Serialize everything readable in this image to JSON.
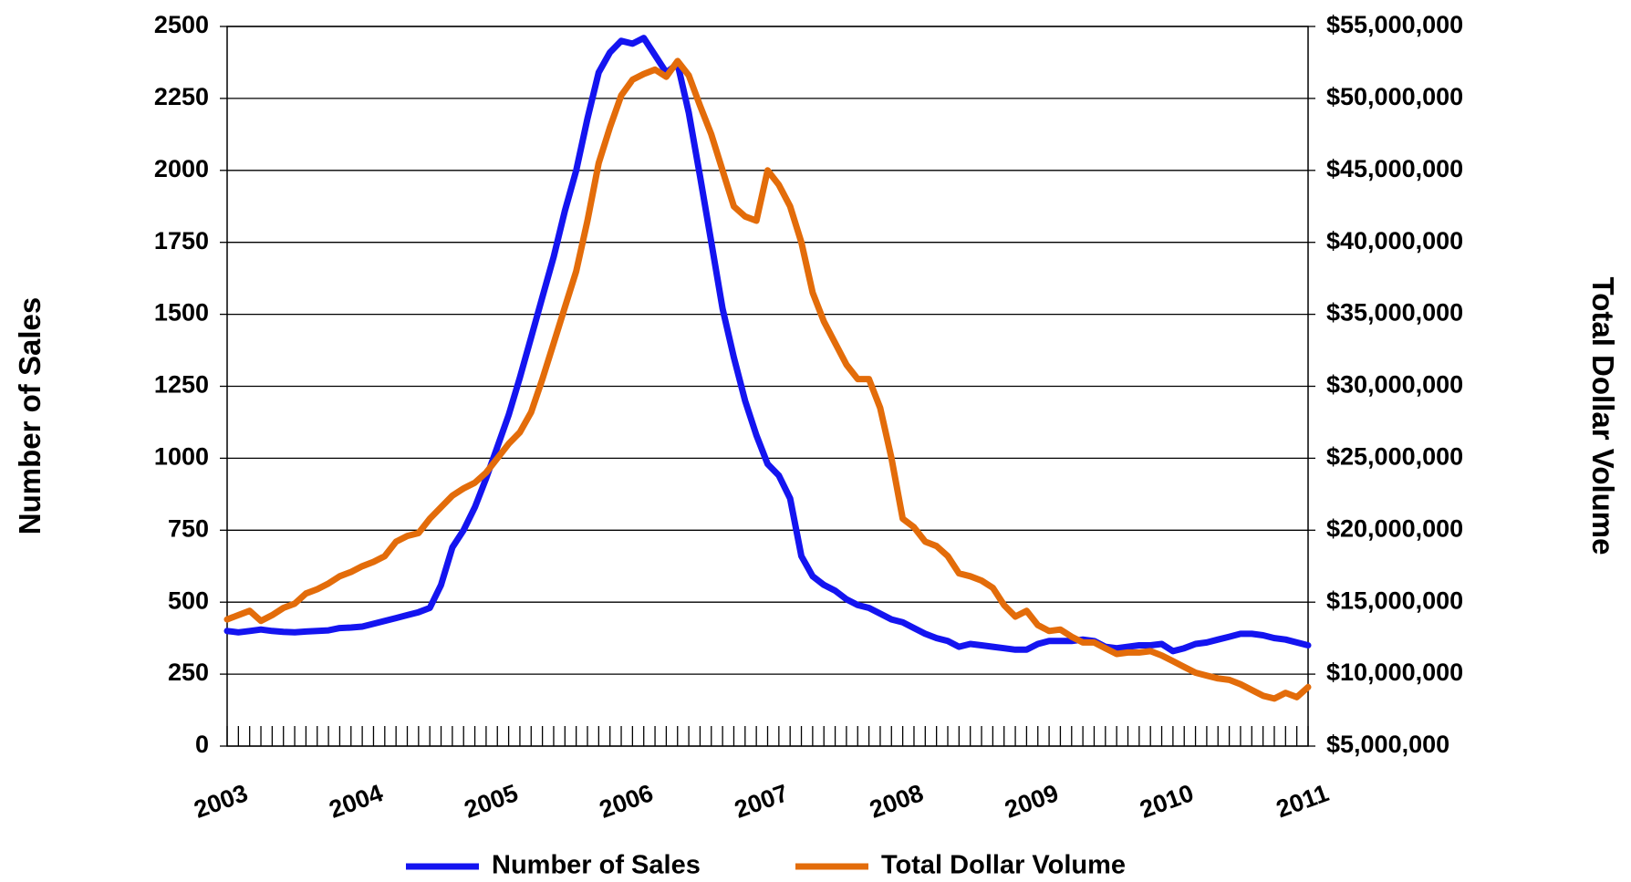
{
  "chart_data": {
    "type": "line",
    "y_label": "Number of Sales",
    "y2_label": "Total Dollar Volume",
    "categories": [
      "2003",
      null,
      null,
      null,
      null,
      null,
      null,
      null,
      null,
      null,
      null,
      null,
      "2004",
      null,
      null,
      null,
      null,
      null,
      null,
      null,
      null,
      null,
      null,
      null,
      "2005",
      null,
      null,
      null,
      null,
      null,
      null,
      null,
      null,
      null,
      null,
      null,
      "2006",
      null,
      null,
      null,
      null,
      null,
      null,
      null,
      null,
      null,
      null,
      null,
      "2007",
      null,
      null,
      null,
      null,
      null,
      null,
      null,
      null,
      null,
      null,
      null,
      "2008",
      null,
      null,
      null,
      null,
      null,
      null,
      null,
      null,
      null,
      null,
      null,
      "2009",
      null,
      null,
      null,
      null,
      null,
      null,
      null,
      null,
      null,
      null,
      null,
      "2010",
      null,
      null,
      null,
      null,
      null,
      null,
      null,
      null,
      null,
      null,
      null,
      "2011"
    ],
    "series": [
      {
        "name": "Number of Sales",
        "color": "#1414f0",
        "axis": "y",
        "values": [
          400,
          395,
          400,
          405,
          400,
          397,
          395,
          398,
          400,
          402,
          410,
          412,
          415,
          425,
          435,
          445,
          455,
          465,
          480,
          560,
          690,
          750,
          830,
          930,
          1040,
          1150,
          1280,
          1420,
          1560,
          1700,
          1860,
          2000,
          2180,
          2340,
          2410,
          2450,
          2440,
          2460,
          2400,
          2340,
          2370,
          2200,
          1980,
          1750,
          1520,
          1350,
          1200,
          1080,
          980,
          940,
          860,
          660,
          590,
          560,
          540,
          510,
          490,
          480,
          460,
          440,
          430,
          410,
          390,
          375,
          365,
          345,
          355,
          350,
          345,
          340,
          335,
          335,
          355,
          365,
          365,
          365,
          370,
          365,
          345,
          340,
          345,
          350,
          350,
          355,
          330,
          340,
          355,
          360,
          370,
          380,
          390,
          390,
          385,
          375,
          370,
          360,
          350
        ]
      },
      {
        "name": "Total Dollar Volume",
        "color": "#e36c0a",
        "axis": "y2",
        "values": [
          13800000,
          14100000,
          14400000,
          13700000,
          14100000,
          14600000,
          14900000,
          15600000,
          15900000,
          16300000,
          16800000,
          17100000,
          17500000,
          17800000,
          18200000,
          19200000,
          19600000,
          19800000,
          20800000,
          21600000,
          22400000,
          22900000,
          23300000,
          24000000,
          25000000,
          26000000,
          26800000,
          28200000,
          30500000,
          33000000,
          35500000,
          38000000,
          41500000,
          45500000,
          48000000,
          50200000,
          51300000,
          51700000,
          52000000,
          51500000,
          52600000,
          51600000,
          49500000,
          47500000,
          45000000,
          42500000,
          41800000,
          41500000,
          45000000,
          44000000,
          42500000,
          40000000,
          36500000,
          34500000,
          33000000,
          31500000,
          30500000,
          30500000,
          28500000,
          25000000,
          20800000,
          20200000,
          19200000,
          18900000,
          18200000,
          17000000,
          16800000,
          16500000,
          16000000,
          14800000,
          14000000,
          14400000,
          13400000,
          13000000,
          13100000,
          12600000,
          12200000,
          12200000,
          11800000,
          11400000,
          11500000,
          11500000,
          11600000,
          11300000,
          10900000,
          10500000,
          10100000,
          9900000,
          9700000,
          9600000,
          9300000,
          8900000,
          8500000,
          8300000,
          8700000,
          8400000,
          9100000
        ]
      }
    ],
    "ylim": [
      0,
      2500
    ],
    "yticks": [
      0,
      250,
      500,
      750,
      1000,
      1250,
      1500,
      1750,
      2000,
      2250,
      2500
    ],
    "y2lim": [
      5000000,
      55000000
    ],
    "y2ticks": [
      {
        "value": 5000000,
        "label": "$5,000,000"
      },
      {
        "value": 10000000,
        "label": "$10,000,000"
      },
      {
        "value": 15000000,
        "label": "$15,000,000"
      },
      {
        "value": 20000000,
        "label": "$20,000,000"
      },
      {
        "value": 25000000,
        "label": "$25,000,000"
      },
      {
        "value": 30000000,
        "label": "$30,000,000"
      },
      {
        "value": 35000000,
        "label": "$35,000,000"
      },
      {
        "value": 40000000,
        "label": "$40,000,000"
      },
      {
        "value": 45000000,
        "label": "$45,000,000"
      },
      {
        "value": 50000000,
        "label": "$50,000,000"
      },
      {
        "value": 55000000,
        "label": "$55,000,000"
      }
    ],
    "grid": true,
    "legend": "bottom"
  }
}
